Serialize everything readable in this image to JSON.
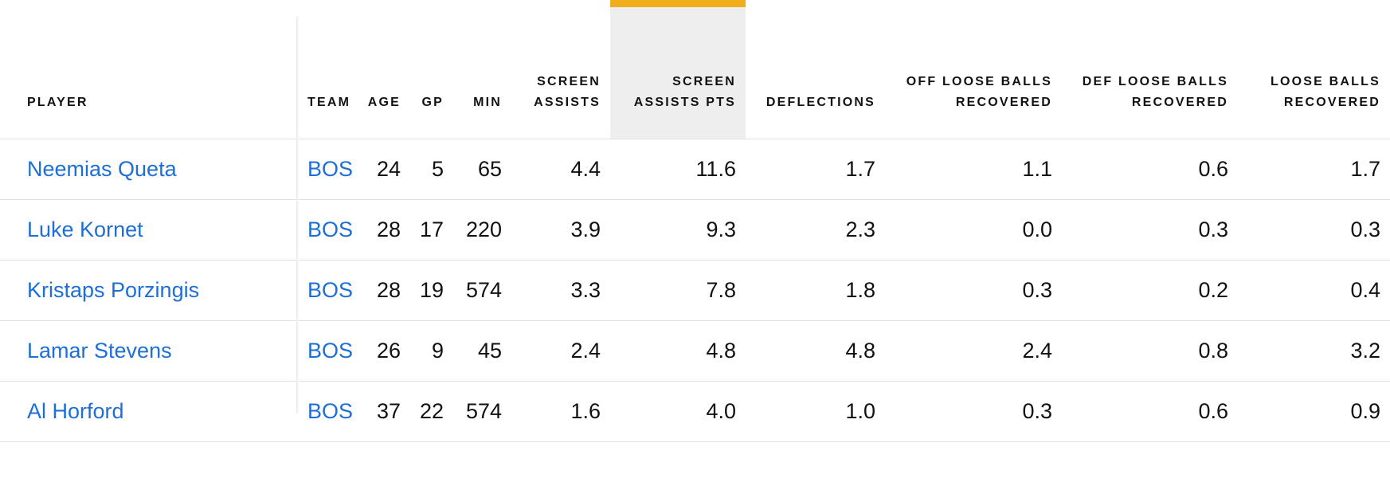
{
  "table": {
    "columns": [
      {
        "key": "player",
        "label": "PLAYER"
      },
      {
        "key": "team",
        "label": "TEAM"
      },
      {
        "key": "age",
        "label": "AGE"
      },
      {
        "key": "gp",
        "label": "GP"
      },
      {
        "key": "min",
        "label": "MIN"
      },
      {
        "key": "screen_assists",
        "label_line1": "SCREEN",
        "label_line2": "ASSISTS"
      },
      {
        "key": "screen_assists_pts",
        "label_line1": "SCREEN",
        "label_line2": "ASSISTS PTS",
        "sorted": true
      },
      {
        "key": "deflections",
        "label": "DEFLECTIONS"
      },
      {
        "key": "off_loose_balls",
        "label_line1": "OFF LOOSE BALLS",
        "label_line2": "RECOVERED"
      },
      {
        "key": "def_loose_balls",
        "label_line1": "DEF LOOSE BALLS",
        "label_line2": "RECOVERED"
      },
      {
        "key": "loose_balls",
        "label_line1": "LOOSE BALLS",
        "label_line2": "RECOVERED"
      }
    ],
    "rows": [
      {
        "player": "Neemias Queta",
        "team": "BOS",
        "age": "24",
        "gp": "5",
        "min": "65",
        "screen_assists": "4.4",
        "screen_assists_pts": "11.6",
        "deflections": "1.7",
        "off_loose_balls": "1.1",
        "def_loose_balls": "0.6",
        "loose_balls": "1.7"
      },
      {
        "player": "Luke Kornet",
        "team": "BOS",
        "age": "28",
        "gp": "17",
        "min": "220",
        "screen_assists": "3.9",
        "screen_assists_pts": "9.3",
        "deflections": "2.3",
        "off_loose_balls": "0.0",
        "def_loose_balls": "0.3",
        "loose_balls": "0.3"
      },
      {
        "player": "Kristaps Porzingis",
        "team": "BOS",
        "age": "28",
        "gp": "19",
        "min": "574",
        "screen_assists": "3.3",
        "screen_assists_pts": "7.8",
        "deflections": "1.8",
        "off_loose_balls": "0.3",
        "def_loose_balls": "0.2",
        "loose_balls": "0.4"
      },
      {
        "player": "Lamar Stevens",
        "team": "BOS",
        "age": "26",
        "gp": "9",
        "min": "45",
        "screen_assists": "2.4",
        "screen_assists_pts": "4.8",
        "deflections": "4.8",
        "off_loose_balls": "2.4",
        "def_loose_balls": "0.8",
        "loose_balls": "3.2"
      },
      {
        "player": "Al Horford",
        "team": "BOS",
        "age": "37",
        "gp": "22",
        "min": "574",
        "screen_assists": "1.6",
        "screen_assists_pts": "4.0",
        "deflections": "1.0",
        "off_loose_balls": "0.3",
        "def_loose_balls": "0.6",
        "loose_balls": "0.9"
      }
    ]
  },
  "colors": {
    "link": "#1d6fd6",
    "sort_indicator": "#f0ad1c",
    "sorted_header_bg": "#eeeeee"
  }
}
